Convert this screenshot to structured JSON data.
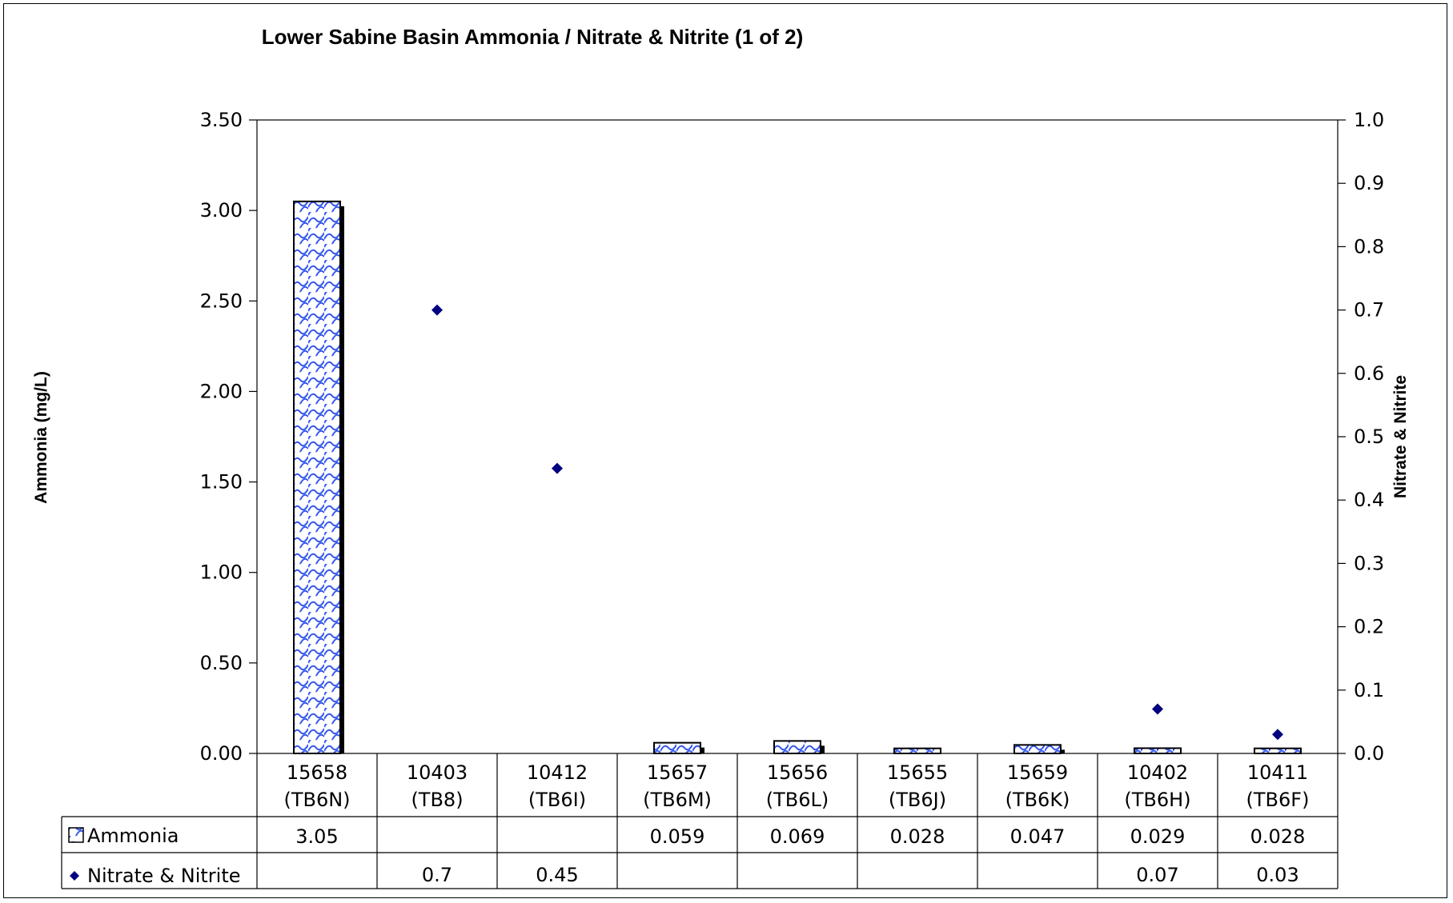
{
  "chart_data": {
    "type": "bar",
    "title": "Lower Sabine Basin Ammonia / Nitrate & Nitrite (1 of 2)",
    "ylabel": "Ammonia (mg/L)",
    "y2label": "Nitrate & Nitrite",
    "ylim": [
      0,
      3.5
    ],
    "y2lim": [
      0,
      1.0
    ],
    "yticks": [
      "0.00",
      "0.50",
      "1.00",
      "1.50",
      "2.00",
      "2.50",
      "3.00",
      "3.50"
    ],
    "y2ticks": [
      "0.0",
      "0.1",
      "0.2",
      "0.3",
      "0.4",
      "0.5",
      "0.6",
      "0.7",
      "0.8",
      "0.9",
      "1.0"
    ],
    "categories": [
      [
        "15658",
        "(TB6N)"
      ],
      [
        "10403",
        "(TB8)"
      ],
      [
        "10412",
        "(TB6I)"
      ],
      [
        "15657",
        "(TB6M)"
      ],
      [
        "15656",
        "(TB6L)"
      ],
      [
        "15655",
        "(TB6J)"
      ],
      [
        "15659",
        "(TB6K)"
      ],
      [
        "10402",
        "(TB6H)"
      ],
      [
        "10411",
        "(TB6F)"
      ]
    ],
    "series": [
      {
        "name": "Ammonia",
        "kind": "bar",
        "axis": "left",
        "values": [
          3.05,
          null,
          null,
          0.059,
          0.069,
          0.028,
          0.047,
          0.029,
          0.028
        ],
        "labels": [
          "3.05",
          "",
          "",
          "0.059",
          "0.069",
          "0.028",
          "0.047",
          "0.029",
          "0.028"
        ]
      },
      {
        "name": "Nitrate & Nitrite",
        "kind": "marker",
        "axis": "right",
        "values": [
          null,
          0.7,
          0.45,
          null,
          null,
          null,
          null,
          0.07,
          0.03
        ],
        "labels": [
          "",
          "0.7",
          "0.45",
          "",
          "",
          "",
          "",
          "0.07",
          "0.03"
        ]
      }
    ],
    "colors": {
      "bar_pattern": "#3355ee",
      "marker": "#000080"
    },
    "grid": false,
    "legend": "data-table"
  }
}
